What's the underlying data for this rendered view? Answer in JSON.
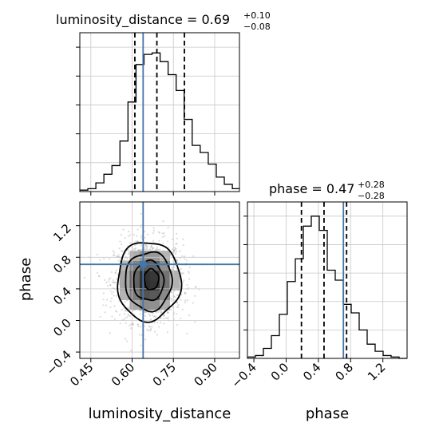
{
  "chart_data": {
    "type": "corner",
    "parameters": [
      "luminosity_distance",
      "phase"
    ],
    "truth": {
      "luminosity_distance": 0.64,
      "phase": 0.71
    },
    "grid": true,
    "panels": [
      {
        "kind": "histogram",
        "parameter": "luminosity_distance",
        "title_prefix": "luminosity_distance = 0.69",
        "title_sup": "+0.10",
        "title_sub": "−0.08",
        "xlim": [
          0.41,
          0.99
        ],
        "ylim": [
          0,
          1.1
        ],
        "quantiles": [
          0.61,
          0.69,
          0.79
        ],
        "bin_edges": [
          0.41,
          0.4392,
          0.4683,
          0.4975,
          0.5267,
          0.5558,
          0.585,
          0.6142,
          0.6433,
          0.6725,
          0.7017,
          0.7308,
          0.76,
          0.7892,
          0.8183,
          0.8475,
          0.8767,
          0.9058,
          0.935,
          0.9642,
          0.99
        ],
        "counts": [
          0.01,
          0.02,
          0.06,
          0.12,
          0.18,
          0.35,
          0.62,
          0.88,
          0.95,
          0.96,
          0.9,
          0.81,
          0.7,
          0.5,
          0.32,
          0.27,
          0.19,
          0.1,
          0.05,
          0.02
        ]
      },
      {
        "kind": "histogram",
        "parameter": "phase",
        "title_prefix": "phase = 0.47",
        "title_sup": "+0.28",
        "title_sub": "−0.28",
        "xlim": [
          -0.48,
          1.5
        ],
        "ylim": [
          0,
          1.1
        ],
        "xticks": [
          "−0.4",
          "0.0",
          "0.4",
          "0.8",
          "1.2"
        ],
        "xtick_values": [
          -0.4,
          0.0,
          0.4,
          0.8,
          1.2
        ],
        "xlabel": "phase",
        "quantiles": [
          0.19,
          0.47,
          0.75
        ],
        "bin_edges": [
          -0.48,
          -0.381,
          -0.282,
          -0.183,
          -0.084,
          0.015,
          0.114,
          0.213,
          0.312,
          0.411,
          0.51,
          0.609,
          0.708,
          0.807,
          0.906,
          1.005,
          1.104,
          1.203,
          1.302,
          1.401,
          1.5
        ],
        "counts": [
          0.01,
          0.02,
          0.07,
          0.16,
          0.31,
          0.54,
          0.7,
          0.93,
          1.0,
          0.9,
          0.62,
          0.55,
          0.38,
          0.32,
          0.2,
          0.1,
          0.05,
          0.02,
          0.01,
          0.0
        ]
      },
      {
        "kind": "2d-density",
        "x": "luminosity_distance",
        "y": "phase",
        "xlim": [
          0.41,
          0.99
        ],
        "ylim": [
          -0.48,
          1.5
        ],
        "xticks": [
          "0.45",
          "0.60",
          "0.75",
          "0.90"
        ],
        "xtick_values": [
          0.45,
          0.6,
          0.75,
          0.9
        ],
        "yticks": [
          "−0.4",
          "0.0",
          "0.4",
          "0.8",
          "1.2"
        ],
        "ytick_values": [
          -0.4,
          0.0,
          0.4,
          0.8,
          1.2
        ],
        "xlabel": "luminosity_distance",
        "ylabel": "phase",
        "center": [
          0.66,
          0.5
        ],
        "contours": [
          {
            "level": "0.5-sigma",
            "rx": 0.026,
            "ry": 0.13,
            "dx": 0.01,
            "dy": 0.02
          },
          {
            "level": "1-sigma",
            "rx": 0.055,
            "ry": 0.25
          },
          {
            "level": "1.5-sigma",
            "rx": 0.085,
            "ry": 0.37
          },
          {
            "level": "2-sigma",
            "rx": 0.115,
            "ry": 0.5
          }
        ]
      }
    ]
  }
}
